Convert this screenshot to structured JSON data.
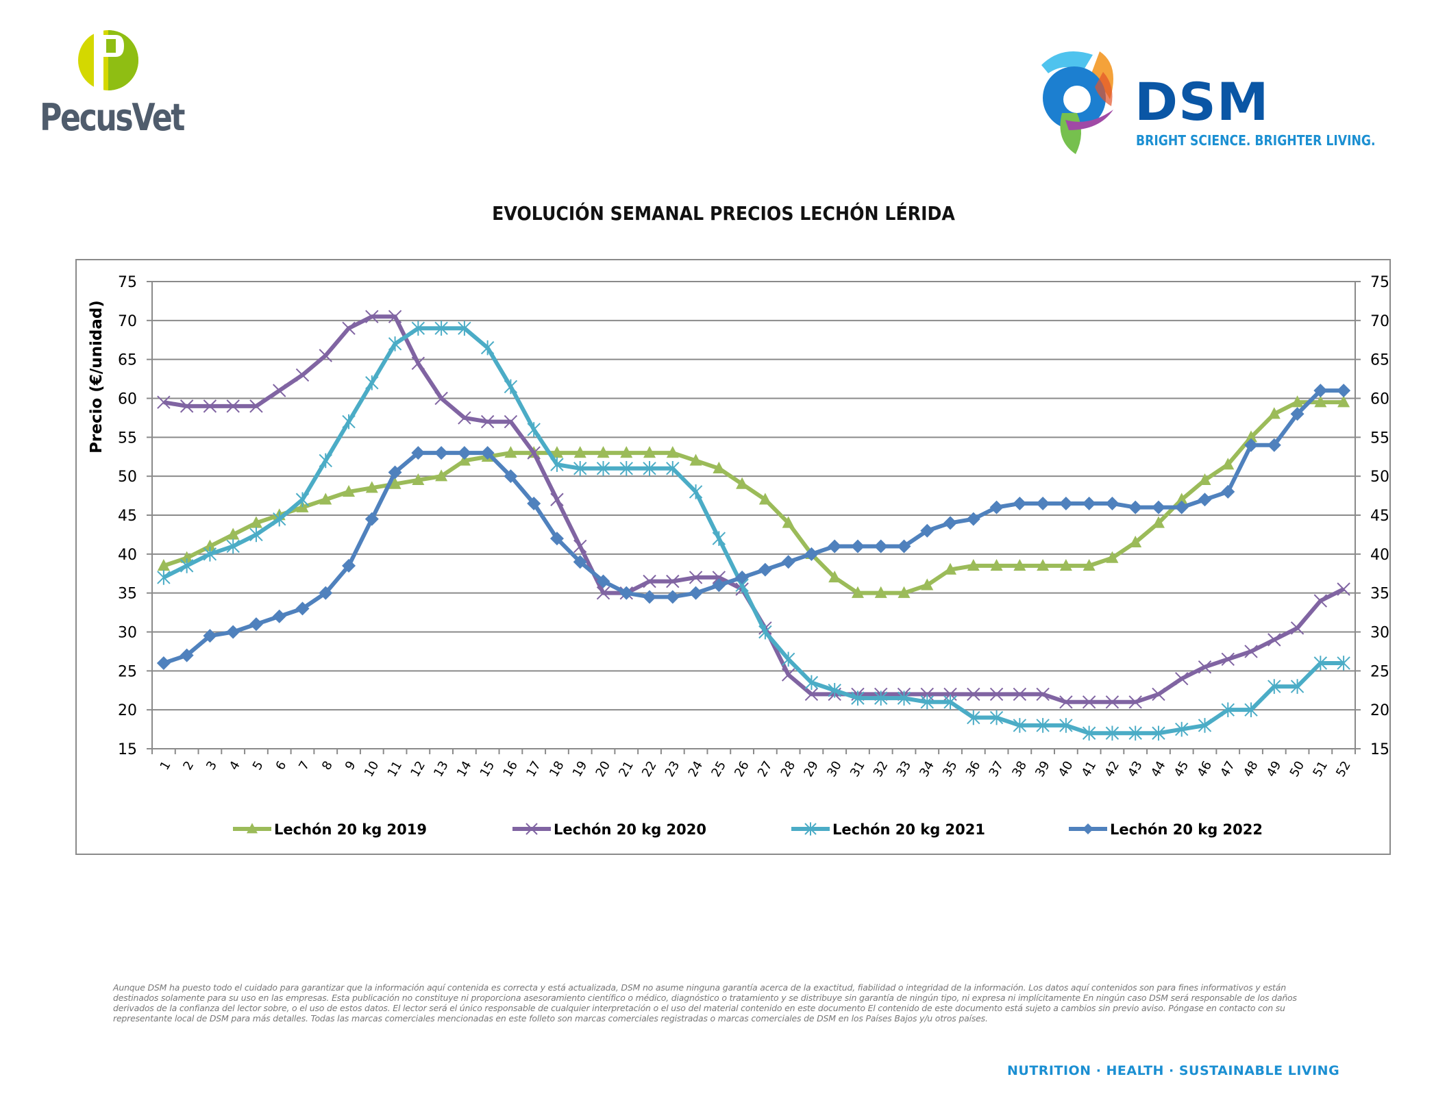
{
  "branding": {
    "left_logo_text": "PecusVet",
    "right_logo_text": "DSM",
    "right_logo_tagline": "BRIGHT SCIENCE. BRIGHTER LIVING.",
    "colors": {
      "pecusvet_text": "#4f5c6c",
      "pecusvet_green_light": "#d4d800",
      "pecusvet_green_dark": "#8fbe13",
      "dsm_blue": "#0a56a5",
      "dsm_light_blue": "#1b8fd2"
    }
  },
  "chart_data": {
    "type": "line",
    "title": "EVOLUCIÓN SEMANAL PRECIOS LECHÓN LÉRIDA",
    "xlabel": "",
    "ylabel": "Precio (€/unidad)",
    "ylim": [
      15,
      75
    ],
    "yticks": [
      15,
      20,
      25,
      30,
      35,
      40,
      45,
      50,
      55,
      60,
      65,
      70,
      75
    ],
    "secondary_y_axis": true,
    "grid": "horizontal",
    "legend_position": "bottom",
    "x": [
      1,
      2,
      3,
      4,
      5,
      6,
      7,
      8,
      9,
      10,
      11,
      12,
      13,
      14,
      15,
      16,
      17,
      18,
      19,
      20,
      21,
      22,
      23,
      24,
      25,
      26,
      27,
      28,
      29,
      30,
      31,
      32,
      33,
      34,
      35,
      36,
      37,
      38,
      39,
      40,
      41,
      42,
      43,
      44,
      45,
      46,
      47,
      48,
      49,
      50,
      51,
      52
    ],
    "series": [
      {
        "name": "Lechón 20 kg 2019",
        "color": "#9bbb59",
        "marker": "triangle",
        "values": [
          38.5,
          39.5,
          41,
          42.5,
          44,
          45,
          46,
          47,
          48,
          48.5,
          49,
          49.5,
          50,
          52,
          52.5,
          53,
          53,
          53,
          53,
          53,
          53,
          53,
          53,
          52,
          51,
          49,
          47,
          44,
          40,
          37,
          35,
          35,
          35,
          36,
          38,
          38.5,
          38.5,
          38.5,
          38.5,
          38.5,
          38.5,
          39.5,
          41.5,
          44,
          47,
          49.5,
          51.5,
          55,
          58,
          59.5,
          59.5,
          59.5
        ]
      },
      {
        "name": "Lechón 20 kg 2020",
        "color": "#8064a2",
        "marker": "x",
        "values": [
          59.5,
          59,
          59,
          59,
          59,
          61,
          63,
          65.5,
          69,
          70.5,
          70.5,
          64.5,
          60,
          57.5,
          57,
          57,
          53,
          47,
          41,
          35,
          35,
          36.5,
          36.5,
          37,
          37,
          35.5,
          30.5,
          24.5,
          22,
          22,
          22,
          22,
          22,
          22,
          22,
          22,
          22,
          22,
          22,
          21,
          21,
          21,
          21,
          22,
          24,
          25.5,
          26.5,
          27.5,
          29,
          30.5,
          34,
          35.5
        ]
      },
      {
        "name": "Lechón 20 kg 2021",
        "color": "#4bacc6",
        "marker": "star",
        "values": [
          37,
          38.5,
          40,
          41,
          42.5,
          44.5,
          47,
          52,
          57,
          62,
          67,
          69,
          69,
          69,
          66.5,
          61.5,
          56,
          51.5,
          51,
          51,
          51,
          51,
          51,
          48,
          42,
          36,
          30,
          26.5,
          23.5,
          22.5,
          21.5,
          21.5,
          21.5,
          21,
          21,
          19,
          19,
          18,
          18,
          18,
          17,
          17,
          17,
          17,
          17.5,
          18,
          20,
          20,
          23,
          23,
          26,
          26
        ]
      },
      {
        "name": "Lechón 20 kg 2022",
        "color": "#4f81bd",
        "marker": "diamond",
        "values": [
          26,
          27,
          29.5,
          30,
          31,
          32,
          33,
          35,
          38.5,
          44.5,
          50.5,
          53,
          53,
          53,
          53,
          50,
          46.5,
          42,
          39,
          36.5,
          35,
          34.5,
          34.5,
          35,
          36,
          37,
          38,
          39,
          40,
          41,
          41,
          41,
          41,
          43,
          44,
          44.5,
          46,
          46.5,
          46.5,
          46.5,
          46.5,
          46.5,
          46,
          46,
          46,
          47,
          48,
          54,
          54,
          58,
          61,
          61
        ]
      }
    ]
  },
  "disclaimer": "Aunque DSM ha puesto todo el cuidado para garantizar que la información aquí contenida es correcta y está actualizada, DSM no asume ninguna garantía acerca de la exactitud, fiabilidad o integridad de la información. Los datos aquí contenidos son para fines informativos y están destinados solamente para su uso en las empresas. Esta publicación no constituye ni proporciona asesoramiento científico o médico, diagnóstico o tratamiento y se distribuye sin garantía de ningún tipo, ni expresa ni implícitamente En ningún caso DSM será responsable de los daños derivados de la confianza del lector sobre, o el uso de estos datos. El lector será el único responsable de cualquier interpretación o el uso del material contenido en este documento El contenido de este documento está sujeto a cambios sin previo aviso. Póngase en contacto con su representante local de DSM para más detalles. Todas las marcas comerciales mencionadas en este folleto son marcas comerciales registradas o marcas comerciales de DSM en los Países Bajos y/u otros países.",
  "footer_tagline": "NUTRITION  ·  HEALTH  ·  SUSTAINABLE LIVING"
}
